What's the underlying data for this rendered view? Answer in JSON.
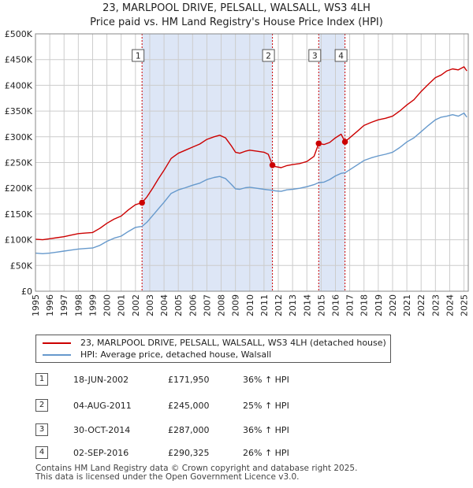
{
  "title": {
    "line1": "23, MARLPOOL DRIVE, PELSALL, WALSALL, WS3 4LH",
    "line2": "Price paid vs. HM Land Registry's House Price Index (HPI)"
  },
  "legend": {
    "items": [
      {
        "label": "23, MARLPOOL DRIVE, PELSALL, WALSALL, WS3 4LH (detached house)",
        "color": "#cc0000"
      },
      {
        "label": "HPI: Average price, detached house, Walsall",
        "color": "#6699cc"
      }
    ]
  },
  "transactions": [
    {
      "num": "1",
      "date": "18-JUN-2002",
      "price": "£171,950",
      "hpi": "36% ↑ HPI"
    },
    {
      "num": "2",
      "date": "04-AUG-2011",
      "price": "£245,000",
      "hpi": "25% ↑ HPI"
    },
    {
      "num": "3",
      "date": "30-OCT-2014",
      "price": "£287,000",
      "hpi": "36% ↑ HPI"
    },
    {
      "num": "4",
      "date": "02-SEP-2016",
      "price": "£290,325",
      "hpi": "26% ↑ HPI"
    }
  ],
  "footer": {
    "line1": "Contains HM Land Registry data © Crown copyright and database right 2025.",
    "line2": "This data is licensed under the Open Government Licence v3.0."
  },
  "chart_data": {
    "type": "line",
    "xlim": [
      1995,
      2025.3
    ],
    "ylim": [
      0,
      500000
    ],
    "y_ticks": [
      0,
      50000,
      100000,
      150000,
      200000,
      250000,
      300000,
      350000,
      400000,
      450000,
      500000
    ],
    "y_tick_labels": [
      "£0",
      "£50K",
      "£100K",
      "£150K",
      "£200K",
      "£250K",
      "£300K",
      "£350K",
      "£400K",
      "£450K",
      "£500K"
    ],
    "x_ticks": [
      1995,
      1996,
      1997,
      1998,
      1999,
      2000,
      2001,
      2002,
      2003,
      2004,
      2005,
      2006,
      2007,
      2008,
      2009,
      2010,
      2011,
      2012,
      2013,
      2014,
      2015,
      2016,
      2017,
      2018,
      2019,
      2020,
      2021,
      2022,
      2023,
      2024,
      2025
    ],
    "x_tick_labels": [
      "1995",
      "1996",
      "1997",
      "1998",
      "1999",
      "2000",
      "2001",
      "2002",
      "2003",
      "2004",
      "2005",
      "2006",
      "2007",
      "2008",
      "2009",
      "2010",
      "2011",
      "2012",
      "2013",
      "2014",
      "2015",
      "2016",
      "2017",
      "2018",
      "2019",
      "2020",
      "2021",
      "2022",
      "2023",
      "2024",
      "2025"
    ],
    "grid": true,
    "shaded_ranges": [
      [
        2002.46,
        2011.59
      ],
      [
        2014.83,
        2016.67
      ]
    ],
    "colors": {
      "price": "#cc0000",
      "hpi": "#6699cc",
      "shade": "#dde6f6",
      "grid": "#cccccc"
    },
    "series": [
      {
        "name": "23, MARLPOOL DRIVE, PELSALL, WALSALL, WS3 4LH (detached house)",
        "x": [
          1995,
          1995.5,
          1996,
          1996.5,
          1997,
          1997.5,
          1998,
          1998.5,
          1999,
          1999.5,
          2000,
          2000.5,
          2001,
          2001.5,
          2002,
          2002.46,
          2002.8,
          2003.2,
          2003.6,
          2004,
          2004.5,
          2005,
          2005.5,
          2006,
          2006.5,
          2007,
          2007.5,
          2007.9,
          2008.3,
          2008.7,
          2009,
          2009.3,
          2009.7,
          2010,
          2010.5,
          2011,
          2011.3,
          2011.59,
          2011.8,
          2012.2,
          2012.6,
          2013,
          2013.5,
          2014,
          2014.5,
          2014.83,
          2015.2,
          2015.6,
          2016,
          2016.4,
          2016.67,
          2017,
          2017.5,
          2018,
          2018.5,
          2019,
          2019.5,
          2020,
          2020.5,
          2021,
          2021.5,
          2022,
          2022.5,
          2023,
          2023.4,
          2023.8,
          2024.2,
          2024.6,
          2025,
          2025.2
        ],
        "y": [
          101000,
          100000,
          102000,
          104000,
          106000,
          109000,
          112000,
          113000,
          114000,
          122000,
          132000,
          140000,
          146000,
          158000,
          168000,
          171950,
          183000,
          200000,
          218000,
          235000,
          258000,
          268000,
          274000,
          280000,
          286000,
          295000,
          300000,
          303000,
          298000,
          283000,
          270000,
          268000,
          272000,
          274000,
          272000,
          270000,
          266000,
          245000,
          242000,
          240000,
          244000,
          246000,
          248000,
          252000,
          262000,
          287000,
          285000,
          289000,
          298000,
          305000,
          290325,
          298000,
          310000,
          322000,
          328000,
          333000,
          336000,
          340000,
          350000,
          362000,
          372000,
          388000,
          402000,
          415000,
          420000,
          428000,
          432000,
          430000,
          436000,
          428000
        ]
      },
      {
        "name": "HPI: Average price, detached house, Walsall",
        "x": [
          1995,
          1995.5,
          1996,
          1996.5,
          1997,
          1997.5,
          1998,
          1998.5,
          1999,
          1999.5,
          2000,
          2000.5,
          2001,
          2001.5,
          2002,
          2002.46,
          2002.8,
          2003.2,
          2003.6,
          2004,
          2004.5,
          2005,
          2005.5,
          2006,
          2006.5,
          2007,
          2007.5,
          2007.9,
          2008.3,
          2008.7,
          2009,
          2009.3,
          2009.7,
          2010,
          2010.5,
          2011,
          2011.3,
          2011.59,
          2011.8,
          2012.2,
          2012.6,
          2013,
          2013.5,
          2014,
          2014.5,
          2014.83,
          2015.2,
          2015.6,
          2016,
          2016.4,
          2016.67,
          2017,
          2017.5,
          2018,
          2018.5,
          2019,
          2019.5,
          2020,
          2020.5,
          2021,
          2021.5,
          2022,
          2022.5,
          2023,
          2023.4,
          2023.8,
          2024.2,
          2024.6,
          2025,
          2025.2
        ],
        "y": [
          74000,
          73000,
          74000,
          76000,
          78000,
          80000,
          82000,
          83000,
          84000,
          89000,
          97000,
          103000,
          107000,
          116000,
          124000,
          126000,
          134000,
          147000,
          160000,
          173000,
          190000,
          197000,
          201000,
          206000,
          210000,
          217000,
          221000,
          223000,
          219000,
          208000,
          199000,
          198000,
          201000,
          202000,
          200000,
          198000,
          197000,
          196000,
          195000,
          194000,
          197000,
          198000,
          200000,
          203000,
          207000,
          211000,
          212000,
          217000,
          224000,
          229000,
          230000,
          236000,
          245000,
          254000,
          259000,
          263000,
          266000,
          270000,
          279000,
          290000,
          298000,
          310000,
          322000,
          333000,
          338000,
          340000,
          343000,
          340000,
          346000,
          338000
        ]
      }
    ],
    "sale_points": [
      {
        "label": "1",
        "x": 2002.46,
        "y": 171950
      },
      {
        "label": "2",
        "x": 2011.59,
        "y": 245000
      },
      {
        "label": "3",
        "x": 2014.83,
        "y": 287000
      },
      {
        "label": "4",
        "x": 2016.67,
        "y": 290325
      }
    ]
  }
}
